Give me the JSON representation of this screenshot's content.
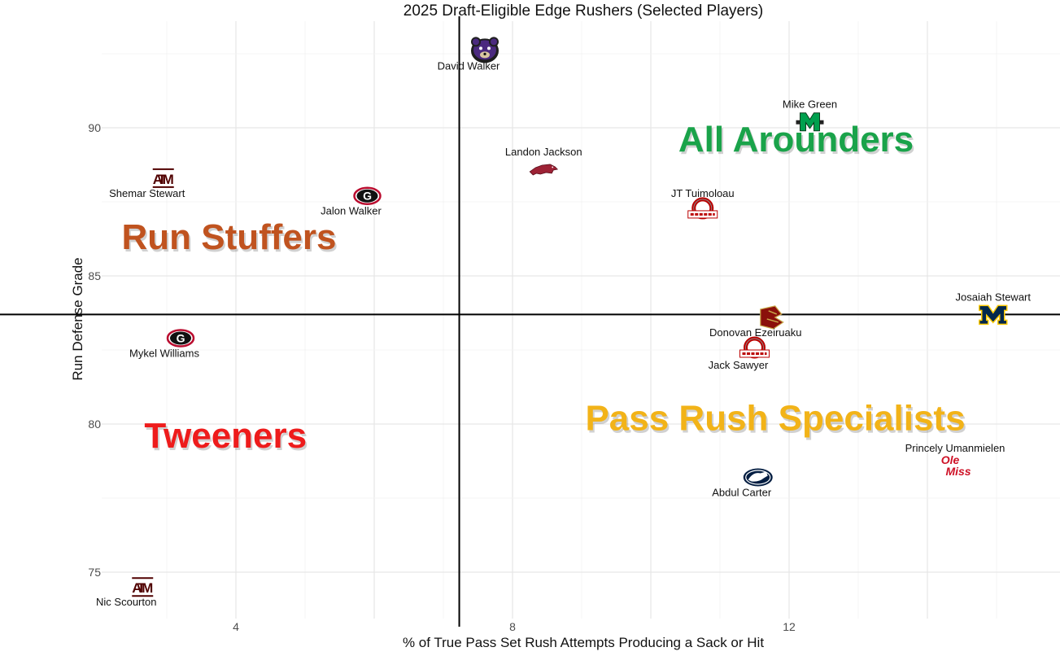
{
  "chart_data": {
    "type": "scatter",
    "title": "2025 Draft-Eligible Edge Rushers (Selected Players)",
    "xlabel": "% of True Pass Set Rush Attempts Producing a Sack or Hit",
    "ylabel": "Run Defense Grade",
    "xlim": [
      1.5,
      15.3
    ],
    "ylim": [
      73.3,
      94.5
    ],
    "x_ticks": [
      4,
      8,
      12
    ],
    "y_ticks": [
      75,
      80,
      85,
      90
    ],
    "grid": true,
    "reference_lines": {
      "x": 7.23,
      "y": 83.7
    },
    "quadrant_labels": [
      {
        "text": "All Arounders",
        "x": 12.1,
        "y": 89.2,
        "color": "#1aa34a"
      },
      {
        "text": "Run Stuffers",
        "x": 3.9,
        "y": 85.9,
        "color": "#c0531f"
      },
      {
        "text": "Tweeners",
        "x": 3.85,
        "y": 79.2,
        "color": "#ee1c1c"
      },
      {
        "text": "Pass Rush Specialists",
        "x": 11.8,
        "y": 79.8,
        "color": "#f2b318"
      }
    ],
    "points": [
      {
        "name": "David Walker",
        "x": 7.6,
        "y": 92.6,
        "logo": "bear-logo",
        "color": "#4b2a7f",
        "label_pos": "below"
      },
      {
        "name": "Mike Green",
        "x": 12.3,
        "y": 90.2,
        "logo": "marshall-m-logo",
        "color": "#00a04e",
        "label_pos": "above"
      },
      {
        "name": "Landon Jackson",
        "x": 8.45,
        "y": 88.6,
        "logo": "razorback-logo",
        "color": "#9d2235",
        "label_pos": "above"
      },
      {
        "name": "Shemar Stewart",
        "x": 2.95,
        "y": 88.3,
        "logo": "atm-logo",
        "color": "#500000",
        "label_pos": "below"
      },
      {
        "name": "Jalon Walker",
        "x": 5.9,
        "y": 87.7,
        "logo": "georgia-g-logo",
        "color": "#ba0c2f",
        "label_pos": "below"
      },
      {
        "name": "JT Tuimoloau",
        "x": 10.75,
        "y": 87.2,
        "logo": "ohio-state-logo",
        "color": "#bb0000",
        "label_pos": "above"
      },
      {
        "name": "Josaiah Stewart",
        "x": 14.95,
        "y": 83.7,
        "logo": "michigan-m-logo",
        "color": "#00274c",
        "label_pos": "above"
      },
      {
        "name": "Donovan Ezeiruaku",
        "x": 11.75,
        "y": 83.6,
        "logo": "bc-logo",
        "color": "#8a100b",
        "label_pos": "below"
      },
      {
        "name": "Mykel Williams",
        "x": 3.2,
        "y": 82.9,
        "logo": "georgia-g-logo",
        "color": "#ba0c2f",
        "label_pos": "below"
      },
      {
        "name": "Jack Sawyer",
        "x": 11.5,
        "y": 82.5,
        "logo": "ohio-state-logo",
        "color": "#bb0000",
        "label_pos": "below"
      },
      {
        "name": "Princely Umanmielen",
        "x": 14.4,
        "y": 78.6,
        "logo": "ole-miss-logo",
        "color": "#ce1126",
        "label_pos": "above"
      },
      {
        "name": "Abdul Carter",
        "x": 11.55,
        "y": 78.2,
        "logo": "penn-state-logo",
        "color": "#041e42",
        "label_pos": "below"
      },
      {
        "name": "Nic Scourton",
        "x": 2.65,
        "y": 74.5,
        "logo": "atm-logo",
        "color": "#500000",
        "label_pos": "below"
      }
    ]
  }
}
